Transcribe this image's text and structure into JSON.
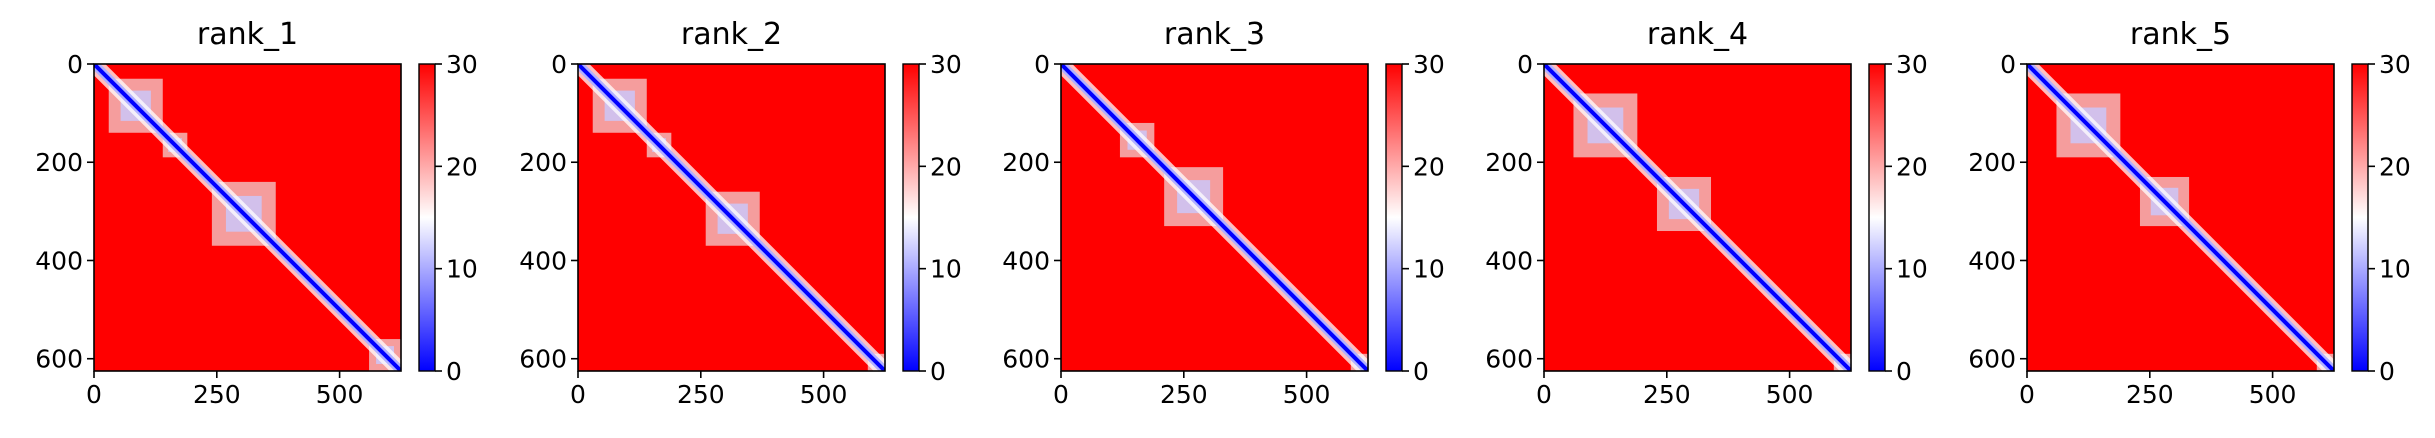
{
  "figure": {
    "colormap": [
      "#0000ff",
      "#ffffff",
      "#ff0000"
    ],
    "background": "#ffffff"
  },
  "chart_data": [
    {
      "type": "heatmap",
      "title": "rank_1",
      "size": 625,
      "xticks": [
        0,
        250,
        500
      ],
      "yticks": [
        0,
        200,
        400,
        600
      ],
      "vmin": 0,
      "vmax": 30,
      "colorbar_ticks": [
        0,
        10,
        20,
        30
      ],
      "domains": [
        [
          30,
          140
        ],
        [
          140,
          190
        ],
        [
          240,
          370
        ],
        [
          560,
          625
        ]
      ]
    },
    {
      "type": "heatmap",
      "title": "rank_2",
      "size": 625,
      "xticks": [
        0,
        250,
        500
      ],
      "yticks": [
        0,
        200,
        400,
        600
      ],
      "vmin": 0,
      "vmax": 30,
      "colorbar_ticks": [
        0,
        10,
        20,
        30
      ],
      "domains": [
        [
          30,
          140
        ],
        [
          140,
          190
        ],
        [
          260,
          370
        ],
        [
          590,
          625
        ]
      ]
    },
    {
      "type": "heatmap",
      "title": "rank_3",
      "size": 625,
      "xticks": [
        0,
        250,
        500
      ],
      "yticks": [
        0,
        200,
        400,
        600
      ],
      "vmin": 0,
      "vmax": 30,
      "colorbar_ticks": [
        0,
        10,
        20,
        30
      ],
      "domains": [
        [
          120,
          190
        ],
        [
          210,
          330
        ],
        [
          590,
          625
        ]
      ]
    },
    {
      "type": "heatmap",
      "title": "rank_4",
      "size": 625,
      "xticks": [
        0,
        250,
        500
      ],
      "yticks": [
        0,
        200,
        400,
        600
      ],
      "vmin": 0,
      "vmax": 30,
      "colorbar_ticks": [
        0,
        10,
        20,
        30
      ],
      "domains": [
        [
          60,
          190
        ],
        [
          230,
          340
        ],
        [
          590,
          625
        ]
      ]
    },
    {
      "type": "heatmap",
      "title": "rank_5",
      "size": 625,
      "xticks": [
        0,
        250,
        500
      ],
      "yticks": [
        0,
        200,
        400,
        600
      ],
      "vmin": 0,
      "vmax": 30,
      "colorbar_ticks": [
        0,
        10,
        20,
        30
      ],
      "domains": [
        [
          60,
          190
        ],
        [
          230,
          330
        ],
        [
          590,
          625
        ]
      ]
    }
  ]
}
